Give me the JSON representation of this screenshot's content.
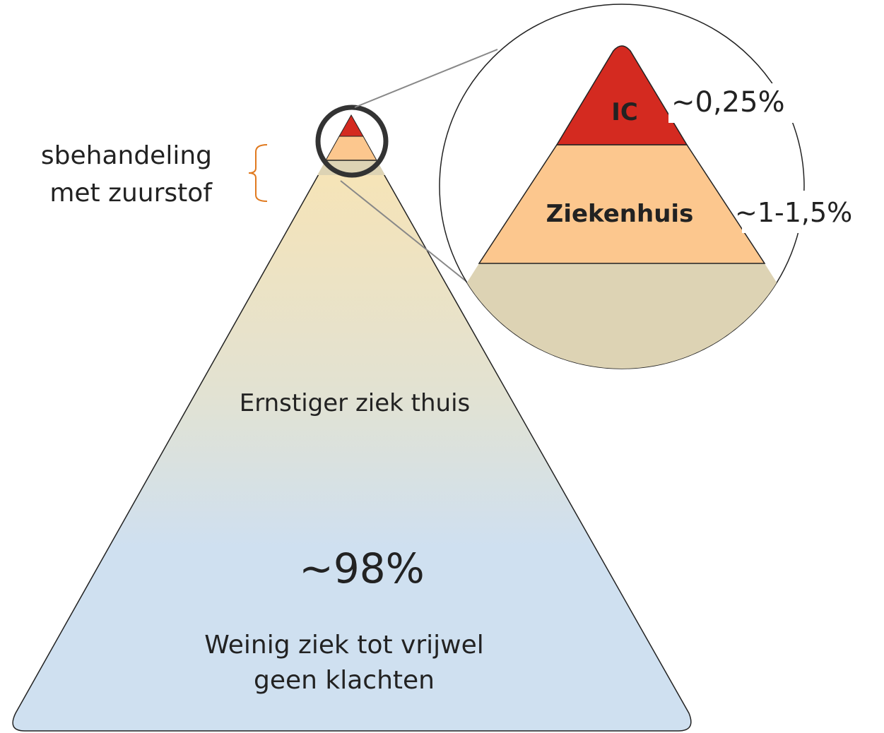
{
  "left_label": {
    "lines": [
      "sbehandeling",
      "met zuurstof"
    ]
  },
  "zoom": {
    "ic_label": "IC",
    "ic_pct": "~0,25%",
    "hospital_label": "Ziekenhuis",
    "hospital_pct": "~1-1,5%"
  },
  "pyramid": {
    "middle_label": "Ernstiger ziek thuis",
    "base_pct": "~98%",
    "base_label_lines": [
      "Weinig ziek tot vrijwel",
      "geen klachten"
    ]
  }
}
